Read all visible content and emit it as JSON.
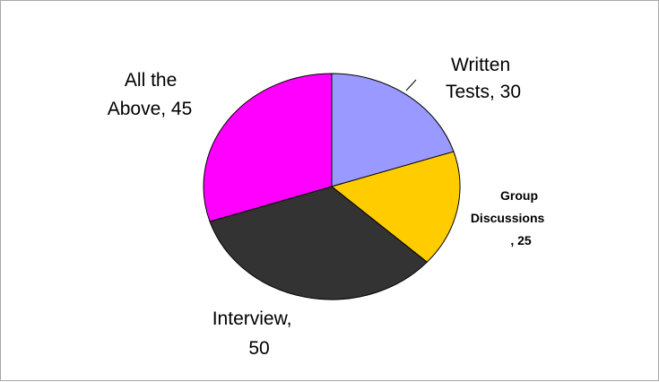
{
  "chart_data": {
    "type": "pie",
    "categories": [
      "Written Tests",
      "Group Discussions",
      "Interview",
      "All the Above"
    ],
    "values": [
      30,
      25,
      50,
      45
    ],
    "colors": [
      "#9999ff",
      "#ffcc00",
      "#333333",
      "#ff00ff"
    ],
    "data_labels": [
      [
        "Written",
        "Tests, 30"
      ],
      [
        "Group",
        "Discussions",
        ", 25"
      ],
      [
        "Interview,",
        "50"
      ],
      [
        "All the",
        "Above, 45"
      ]
    ],
    "title": "",
    "legend": "none"
  }
}
